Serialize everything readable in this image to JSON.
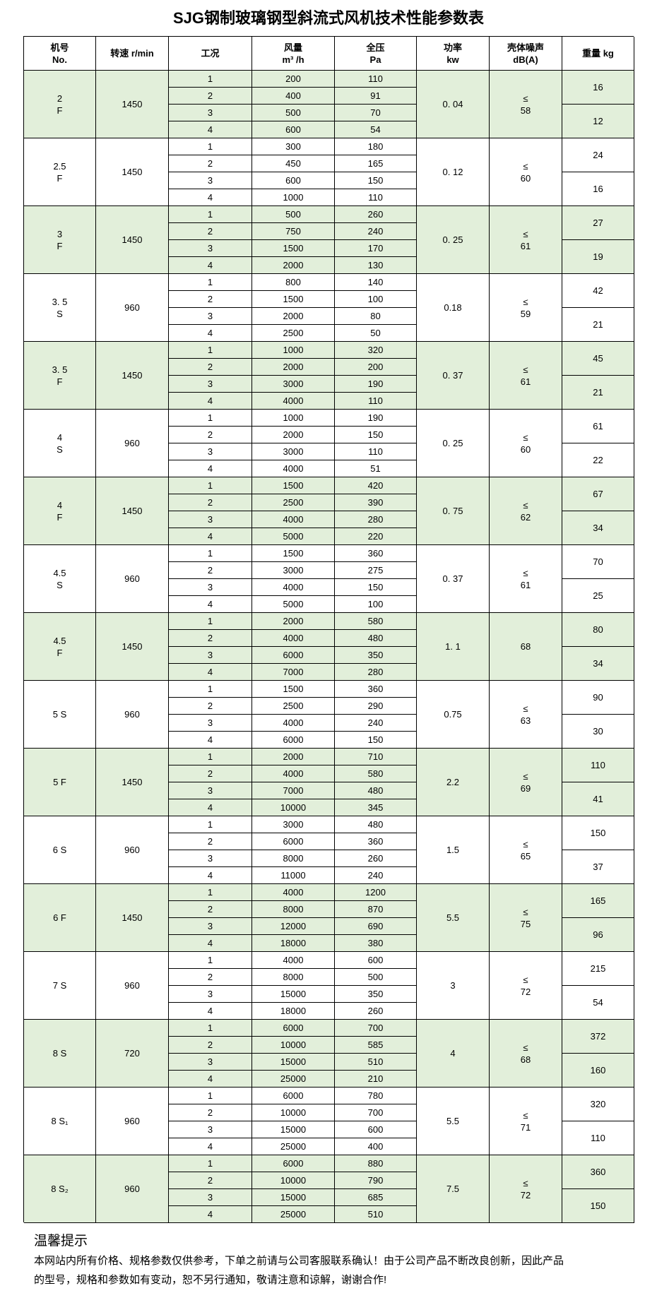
{
  "title": "SJG钢制玻璃钢型斜流式风机技术性能参数表",
  "table": {
    "header": [
      [
        "机号",
        "No."
      ],
      [
        "转速 r/min"
      ],
      [
        "工况"
      ],
      [
        "风量",
        "m³ /h"
      ],
      [
        "全压",
        "Pa"
      ],
      [
        "功率",
        "kw"
      ],
      [
        "壳体噪声",
        "dB(A)"
      ],
      [
        "重量 kg"
      ]
    ],
    "groups": [
      {
        "model": [
          "2",
          "F"
        ],
        "speed": "1450",
        "rows": [
          [
            "1",
            "200",
            "110"
          ],
          [
            "2",
            "400",
            "91"
          ],
          [
            "3",
            "500",
            "70"
          ],
          [
            "4",
            "600",
            "54"
          ]
        ],
        "power": "0. 04",
        "noise": [
          "≤",
          "58"
        ],
        "weight": [
          "16",
          "12"
        ]
      },
      {
        "model": [
          "2.5",
          "F"
        ],
        "speed": "1450",
        "rows": [
          [
            "1",
            "300",
            "180"
          ],
          [
            "2",
            "450",
            "165"
          ],
          [
            "3",
            "600",
            "150"
          ],
          [
            "4",
            "1000",
            "110"
          ]
        ],
        "power": "0. 12",
        "noise": [
          "≤",
          "60"
        ],
        "weight": [
          "24",
          "16"
        ]
      },
      {
        "model": [
          "3",
          "F"
        ],
        "speed": "1450",
        "rows": [
          [
            "1",
            "500",
            "260"
          ],
          [
            "2",
            "750",
            "240"
          ],
          [
            "3",
            "1500",
            "170"
          ],
          [
            "4",
            "2000",
            "130"
          ]
        ],
        "power": "0. 25",
        "noise": [
          "≤",
          "61"
        ],
        "weight": [
          "27",
          "19"
        ]
      },
      {
        "model": [
          "3. 5",
          "S"
        ],
        "speed": "960",
        "rows": [
          [
            "1",
            "800",
            "140"
          ],
          [
            "2",
            "1500",
            "100"
          ],
          [
            "3",
            "2000",
            "80"
          ],
          [
            "4",
            "2500",
            "50"
          ]
        ],
        "power": "0.18",
        "noise": [
          "≤",
          "59"
        ],
        "weight": [
          "42",
          "21"
        ]
      },
      {
        "model": [
          "3. 5",
          "F"
        ],
        "speed": "1450",
        "rows": [
          [
            "1",
            "1000",
            "320"
          ],
          [
            "2",
            "2000",
            "200"
          ],
          [
            "3",
            "3000",
            "190"
          ],
          [
            "4",
            "4000",
            "110"
          ]
        ],
        "power": "0. 37",
        "noise": [
          "≤",
          "61"
        ],
        "weight": [
          "45",
          "21"
        ]
      },
      {
        "model": [
          "4",
          "S"
        ],
        "speed": "960",
        "rows": [
          [
            "1",
            "1000",
            "190"
          ],
          [
            "2",
            "2000",
            "150"
          ],
          [
            "3",
            "3000",
            "110"
          ],
          [
            "4",
            "4000",
            "51"
          ]
        ],
        "power": "0. 25",
        "noise": [
          "≤",
          "60"
        ],
        "weight": [
          "61",
          "22"
        ]
      },
      {
        "model": [
          "4",
          "F"
        ],
        "speed": "1450",
        "rows": [
          [
            "1",
            "1500",
            "420"
          ],
          [
            "2",
            "2500",
            "390"
          ],
          [
            "3",
            "4000",
            "280"
          ],
          [
            "4",
            "5000",
            "220"
          ]
        ],
        "power": "0. 75",
        "noise": [
          "≤",
          "62"
        ],
        "weight": [
          "67",
          "34"
        ]
      },
      {
        "model": [
          "4.5",
          "S"
        ],
        "speed": "960",
        "rows": [
          [
            "1",
            "1500",
            "360"
          ],
          [
            "2",
            "3000",
            "275"
          ],
          [
            "3",
            "4000",
            "150"
          ],
          [
            "4",
            "5000",
            "100"
          ]
        ],
        "power": "0. 37",
        "noise": [
          "≤",
          "61"
        ],
        "weight": [
          "70",
          "25"
        ]
      },
      {
        "model": [
          "4.5",
          "F"
        ],
        "speed": "1450",
        "rows": [
          [
            "1",
            "2000",
            "580"
          ],
          [
            "2",
            "4000",
            "480"
          ],
          [
            "3",
            "6000",
            "350"
          ],
          [
            "4",
            "7000",
            "280"
          ]
        ],
        "power": "1. 1",
        "noise": [
          "68"
        ],
        "weight": [
          "80",
          "34"
        ]
      },
      {
        "model": [
          "5 S"
        ],
        "speed": "960",
        "rows": [
          [
            "1",
            "1500",
            "360"
          ],
          [
            "2",
            "2500",
            "290"
          ],
          [
            "3",
            "4000",
            "240"
          ],
          [
            "4",
            "6000",
            "150"
          ]
        ],
        "power": "0.75",
        "noise": [
          "≤",
          "63"
        ],
        "weight": [
          "90",
          "30"
        ]
      },
      {
        "model": [
          "5 F"
        ],
        "speed": "1450",
        "rows": [
          [
            "1",
            "2000",
            "710"
          ],
          [
            "2",
            "4000",
            "580"
          ],
          [
            "3",
            "7000",
            "480"
          ],
          [
            "4",
            "10000",
            "345"
          ]
        ],
        "power": "2.2",
        "noise": [
          "≤",
          "69"
        ],
        "weight": [
          "110",
          "41"
        ]
      },
      {
        "model": [
          "6 S"
        ],
        "speed": "960",
        "rows": [
          [
            "1",
            "3000",
            "480"
          ],
          [
            "2",
            "6000",
            "360"
          ],
          [
            "3",
            "8000",
            "260"
          ],
          [
            "4",
            "11000",
            "240"
          ]
        ],
        "power": "1.5",
        "noise": [
          "≤",
          "65"
        ],
        "weight": [
          "150",
          "37"
        ]
      },
      {
        "model": [
          "6 F"
        ],
        "speed": "1450",
        "rows": [
          [
            "1",
            "4000",
            "1200"
          ],
          [
            "2",
            "8000",
            "870"
          ],
          [
            "3",
            "12000",
            "690"
          ],
          [
            "4",
            "18000",
            "380"
          ]
        ],
        "power": "5.5",
        "noise": [
          "≤",
          "75"
        ],
        "weight": [
          "165",
          "96"
        ]
      },
      {
        "model": [
          "7 S"
        ],
        "speed": "960",
        "rows": [
          [
            "1",
            "4000",
            "600"
          ],
          [
            "2",
            "8000",
            "500"
          ],
          [
            "3",
            "15000",
            "350"
          ],
          [
            "4",
            "18000",
            "260"
          ]
        ],
        "power": "3",
        "noise": [
          "≤",
          "72"
        ],
        "weight": [
          "215",
          "54"
        ]
      },
      {
        "model": [
          "8 S"
        ],
        "speed": "720",
        "rows": [
          [
            "1",
            "6000",
            "700"
          ],
          [
            "2",
            "10000",
            "585"
          ],
          [
            "3",
            "15000",
            "510"
          ],
          [
            "4",
            "25000",
            "210"
          ]
        ],
        "power": "4",
        "noise": [
          "≤",
          "68"
        ],
        "weight": [
          "372",
          "160"
        ]
      },
      {
        "model": [
          "8 S₁"
        ],
        "speed": "960",
        "rows": [
          [
            "1",
            "6000",
            "780"
          ],
          [
            "2",
            "10000",
            "700"
          ],
          [
            "3",
            "15000",
            "600"
          ],
          [
            "4",
            "25000",
            "400"
          ]
        ],
        "power": "5.5",
        "noise": [
          "≤",
          "71"
        ],
        "weight": [
          "320",
          "110"
        ]
      },
      {
        "model": [
          "8 S₂"
        ],
        "speed": "960",
        "rows": [
          [
            "1",
            "6000",
            "880"
          ],
          [
            "2",
            "10000",
            "790"
          ],
          [
            "3",
            "15000",
            "685"
          ],
          [
            "4",
            "25000",
            "510"
          ]
        ],
        "power": "7.5",
        "noise": [
          "≤",
          "72"
        ],
        "weight": [
          "360",
          "150"
        ]
      }
    ]
  },
  "notice": {
    "heading": "温馨提示",
    "lines": [
      "本网站内所有价格、规格参数仅供参考，下单之前请与公司客服联系确认！由于公司产品不断改良创新，因此产品",
      "的型号，规格和参数如有变动，恕不另行通知，敬请注意和谅解，谢谢合作!"
    ]
  }
}
